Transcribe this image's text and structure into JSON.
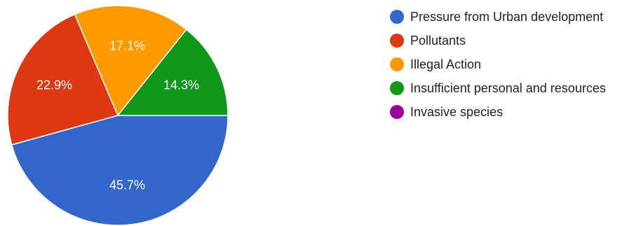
{
  "chart_data": {
    "type": "pie",
    "start_angle_deg": 90,
    "direction": "clockwise",
    "categories": [
      "Pressure from Urban development",
      "Pollutants",
      "Illegal Action",
      "Insufficient personal and resources",
      "Invasive species"
    ],
    "values": [
      45.7,
      22.9,
      17.1,
      14.3,
      0
    ],
    "data_labels": [
      "45.7%",
      "22.9%",
      "17.1%",
      "14.3%",
      ""
    ],
    "colors": [
      "#3366cc",
      "#dc3912",
      "#ff9900",
      "#109618",
      "#990099"
    ],
    "legend_placement": "right"
  }
}
